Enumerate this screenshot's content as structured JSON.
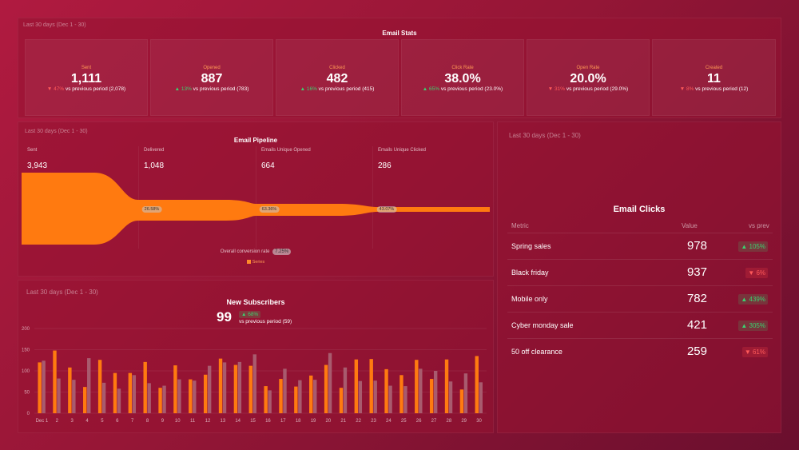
{
  "stats": {
    "period": "Last 30 days (Dec 1 - 30)",
    "title": "Email Stats",
    "items": [
      {
        "label": "Sent",
        "value": "1,111",
        "dir": "down",
        "change": "47%",
        "vs": "vs previous period (2,078)"
      },
      {
        "label": "Opened",
        "value": "887",
        "dir": "up",
        "change": "13%",
        "vs": "vs previous period (783)"
      },
      {
        "label": "Clicked",
        "value": "482",
        "dir": "up",
        "change": "16%",
        "vs": "vs previous period (415)"
      },
      {
        "label": "Click Rate",
        "value": "38.0%",
        "dir": "up",
        "change": "65%",
        "vs": "vs previous period (23.0%)"
      },
      {
        "label": "Open Rate",
        "value": "20.0%",
        "dir": "down",
        "change": "31%",
        "vs": "vs previous period (29.0%)"
      },
      {
        "label": "Created",
        "value": "11",
        "dir": "down",
        "change": "8%",
        "vs": "vs previous period (12)"
      }
    ]
  },
  "pipeline": {
    "period": "Last 30 days (Dec 1 - 30)",
    "title": "Email Pipeline",
    "stages": [
      {
        "label": "Sent",
        "value": "3,943"
      },
      {
        "label": "Delivered",
        "value": "1,048"
      },
      {
        "label": "Emails Unique Opened",
        "value": "664"
      },
      {
        "label": "Emails Unique Clicked",
        "value": "286"
      }
    ],
    "transitions": [
      "26.58%",
      "63.36%",
      "43.07%"
    ],
    "conversion_label": "Overall conversion rate",
    "conversion_value": "7.25%",
    "legend": "Series",
    "color": "#ff7a10"
  },
  "subscribers": {
    "period": "Last 30 days (Dec 1 - 30)",
    "title": "New Subscribers",
    "value": "99",
    "change": "68%",
    "vs": "vs previous period (59)"
  },
  "chart_data": {
    "type": "bar",
    "categories": [
      "Dec 1",
      "2",
      "3",
      "4",
      "5",
      "6",
      "7",
      "8",
      "9",
      "10",
      "11",
      "12",
      "13",
      "14",
      "15",
      "16",
      "17",
      "18",
      "19",
      "20",
      "21",
      "22",
      "23",
      "24",
      "25",
      "26",
      "27",
      "28",
      "29",
      "30"
    ],
    "series": [
      {
        "values": [
          120,
          148,
          108,
          62,
          126,
          95,
          95,
          121,
          60,
          113,
          80,
          91,
          129,
          114,
          112,
          64,
          81,
          63,
          89,
          114,
          60,
          127,
          128,
          104,
          90,
          126,
          81,
          127,
          56,
          135
        ],
        "color": "#ff7a10"
      },
      {
        "values": [
          124,
          82,
          79,
          130,
          72,
          58,
          90,
          71,
          65,
          80,
          77,
          112,
          120,
          121,
          139,
          54,
          105,
          78,
          79,
          142,
          108,
          76,
          77,
          65,
          64,
          105,
          100,
          75,
          94,
          73
        ],
        "color": "#a85b6e"
      }
    ],
    "ylim": [
      0,
      200
    ],
    "yticks": [
      0,
      50,
      100,
      150,
      200
    ],
    "grid": true
  },
  "clicks": {
    "period": "Last 30 days (Dec 1 - 30)",
    "title": "Email Clicks",
    "headers": {
      "metric": "Metric",
      "value": "Value",
      "vs": "vs prev"
    },
    "rows": [
      {
        "metric": "Spring sales",
        "value": "978",
        "dir": "up",
        "change": "105%"
      },
      {
        "metric": "Black friday",
        "value": "937",
        "dir": "down",
        "change": "6%"
      },
      {
        "metric": "Mobile only",
        "value": "782",
        "dir": "up",
        "change": "439%"
      },
      {
        "metric": "Cyber monday sale",
        "value": "421",
        "dir": "up",
        "change": "305%"
      },
      {
        "metric": "50 off clearance",
        "value": "259",
        "dir": "down",
        "change": "61%"
      }
    ]
  }
}
